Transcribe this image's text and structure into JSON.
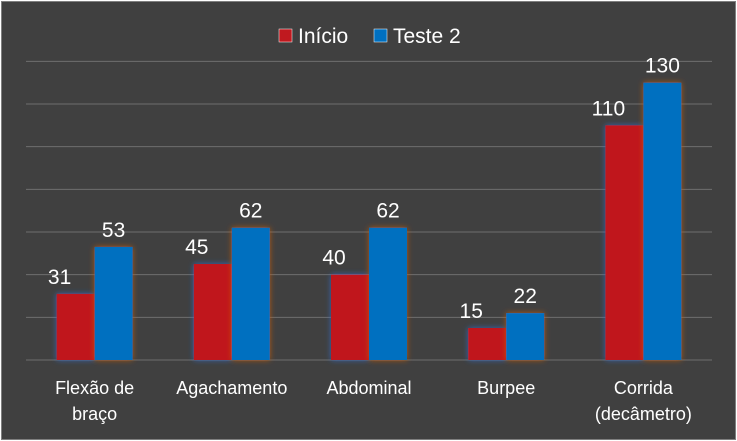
{
  "chart_data": {
    "type": "bar",
    "title": "",
    "xlabel": "",
    "ylabel": "",
    "ylim": [
      0,
      150
    ],
    "grid": true,
    "legend_position": "top",
    "categories": [
      [
        "Flexão de",
        "braço"
      ],
      [
        "Agachamento"
      ],
      [
        "Abdominal"
      ],
      [
        "Burpee"
      ],
      [
        "Corrida",
        "(decâmetro)"
      ]
    ],
    "series": [
      {
        "name": "Início",
        "color": "#c0191f",
        "values": [
          31,
          45,
          40,
          15,
          110
        ]
      },
      {
        "name": "Teste 2",
        "color": "#0070c0",
        "values": [
          53,
          62,
          62,
          22,
          130
        ]
      }
    ]
  },
  "colors": {
    "background": "#404040",
    "gridline": "#6e6e6e",
    "glow": "#c55a11"
  }
}
